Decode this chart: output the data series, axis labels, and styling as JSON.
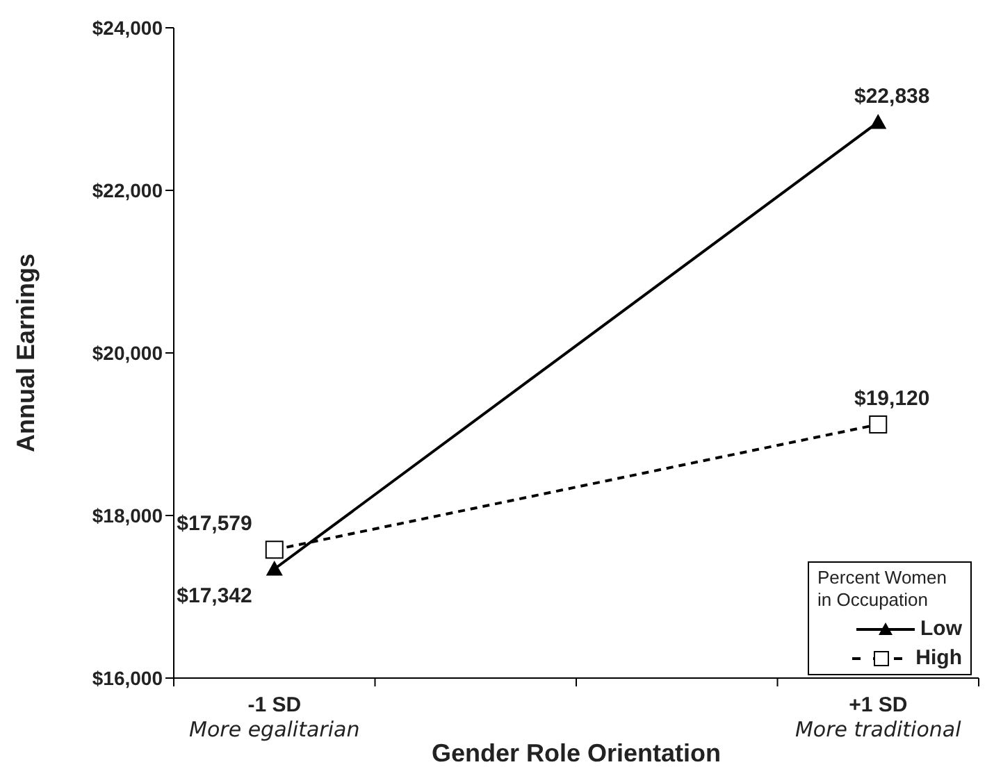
{
  "chart_data": {
    "type": "line",
    "xlabel": "Gender Role Orientation",
    "ylabel": "Annual Earnings",
    "legend_title": "Percent Women in Occupation",
    "legend": "bottom right",
    "categories": [
      "-1 SD",
      null,
      null,
      "+1 SD"
    ],
    "series": [
      {
        "name": "Low",
        "color": "#000000",
        "values": [
          17342,
          null,
          null,
          22838
        ],
        "marker": "triangle",
        "line_style": "solid",
        "value_labels": [
          "$17,342",
          null,
          null,
          "$22,838"
        ]
      },
      {
        "name": "High",
        "color": "#000000",
        "values": [
          17579,
          null,
          null,
          19120
        ],
        "marker": "square",
        "line_style": "dashed",
        "value_labels": [
          "$17,579",
          null,
          null,
          "$19,120"
        ]
      }
    ],
    "ylim": [
      16000,
      24000
    ],
    "yticks": [
      {
        "value": 16000,
        "label": "$16,000"
      },
      {
        "value": 18000,
        "label": "$18,000"
      },
      {
        "value": 20000,
        "label": "$20,000"
      },
      {
        "value": 22000,
        "label": "$22,000"
      },
      {
        "value": 24000,
        "label": "$24,000"
      }
    ],
    "grid": false,
    "annotations": [
      "More egalitarian",
      "More traditional"
    ]
  }
}
